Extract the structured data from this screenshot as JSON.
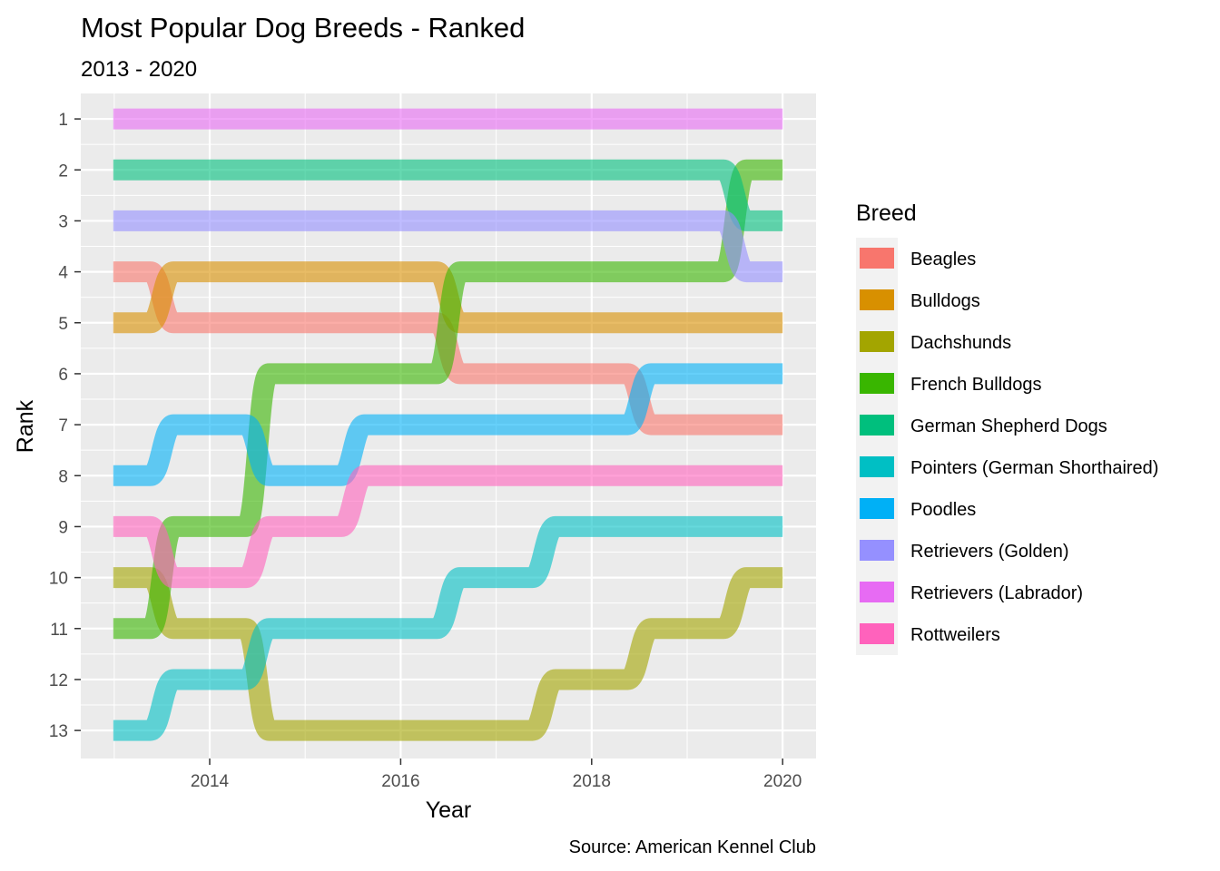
{
  "chart_data": {
    "type": "line",
    "title": "Most Popular Dog Breeds - Ranked",
    "subtitle": "2013 - 2020",
    "xlabel": "Year",
    "ylabel": "Rank",
    "caption": "Source: American Kennel Club",
    "x": [
      2013,
      2014,
      2015,
      2016,
      2017,
      2018,
      2019,
      2020
    ],
    "xlim": [
      2012.65,
      2020.35
    ],
    "ylim": [
      0.5,
      13.55
    ],
    "y_reversed": true,
    "x_ticks": [
      {
        "value": 2014,
        "label": "2014"
      },
      {
        "value": 2016,
        "label": "2016"
      },
      {
        "value": 2018,
        "label": "2018"
      },
      {
        "value": 2020,
        "label": "2020"
      }
    ],
    "y_ticks": [
      {
        "value": 1,
        "label": "1"
      },
      {
        "value": 2,
        "label": "2"
      },
      {
        "value": 3,
        "label": "3"
      },
      {
        "value": 4,
        "label": "4"
      },
      {
        "value": 5,
        "label": "5"
      },
      {
        "value": 6,
        "label": "6"
      },
      {
        "value": 7,
        "label": "7"
      },
      {
        "value": 8,
        "label": "8"
      },
      {
        "value": 9,
        "label": "9"
      },
      {
        "value": 10,
        "label": "10"
      },
      {
        "value": 11,
        "label": "11"
      },
      {
        "value": 12,
        "label": "12"
      },
      {
        "value": 13,
        "label": "13"
      }
    ],
    "grid": true,
    "legend_title": "Breed",
    "legend_position": "right",
    "series": [
      {
        "name": "Beagles",
        "color": "#F8766D",
        "values": [
          4,
          5,
          5,
          5,
          6,
          6,
          7,
          7
        ]
      },
      {
        "name": "Bulldogs",
        "color": "#D89000",
        "values": [
          5,
          4,
          4,
          4,
          5,
          5,
          5,
          5
        ]
      },
      {
        "name": "Dachshunds",
        "color": "#A3A500",
        "values": [
          10,
          11,
          13,
          13,
          13,
          12,
          11,
          10
        ]
      },
      {
        "name": "French Bulldogs",
        "color": "#39B600",
        "values": [
          11,
          9,
          6,
          6,
          4,
          4,
          4,
          2
        ]
      },
      {
        "name": "German Shepherd Dogs",
        "color": "#00BF7D",
        "values": [
          2,
          2,
          2,
          2,
          2,
          2,
          2,
          3
        ]
      },
      {
        "name": "Pointers (German Shorthaired)",
        "color": "#00BFC4",
        "values": [
          13,
          12,
          11,
          11,
          10,
          9,
          9,
          9
        ]
      },
      {
        "name": "Poodles",
        "color": "#00B0F6",
        "values": [
          8,
          7,
          8,
          7,
          7,
          7,
          6,
          6
        ]
      },
      {
        "name": "Retrievers (Golden)",
        "color": "#9590FF",
        "values": [
          3,
          3,
          3,
          3,
          3,
          3,
          3,
          4
        ]
      },
      {
        "name": "Retrievers (Labrador)",
        "color": "#E76BF3",
        "values": [
          1,
          1,
          1,
          1,
          1,
          1,
          1,
          1
        ]
      },
      {
        "name": "Rottweilers",
        "color": "#FF62BC",
        "values": [
          9,
          10,
          9,
          8,
          8,
          8,
          8,
          8
        ]
      }
    ]
  }
}
